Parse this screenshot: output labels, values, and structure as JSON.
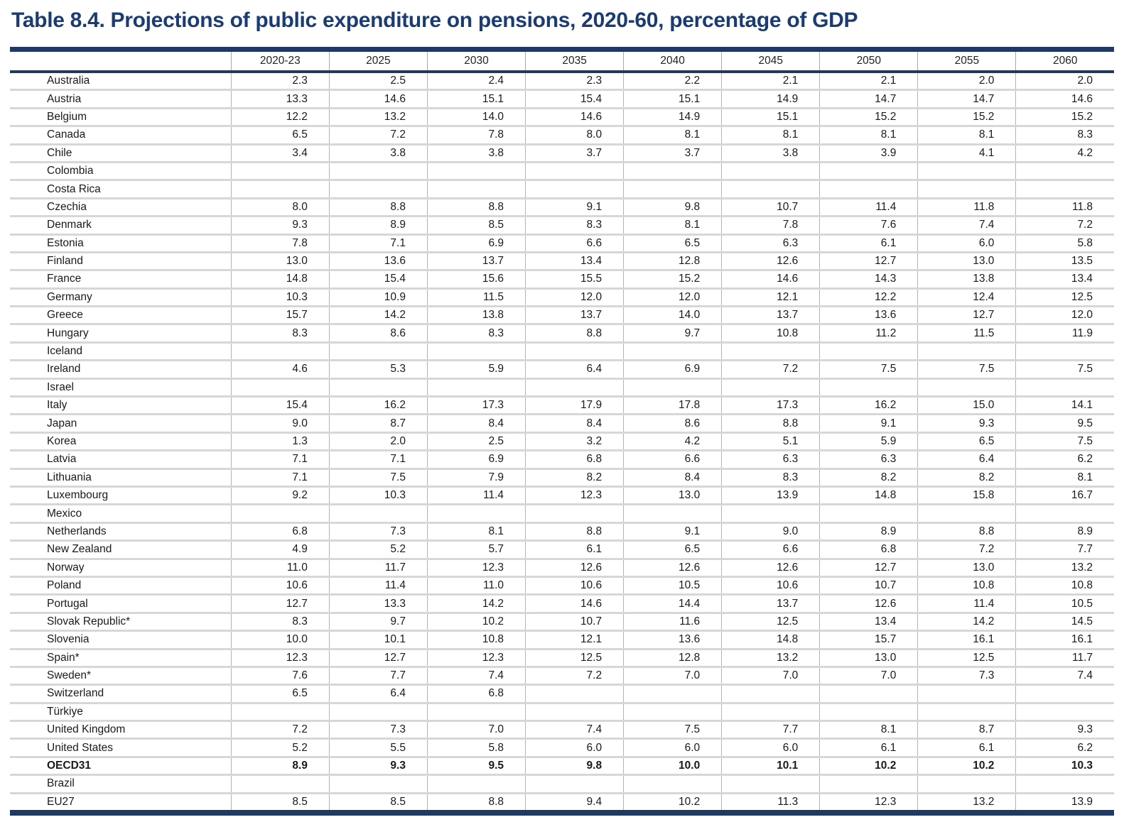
{
  "title": "Table 8.4. Projections of public expenditure on pensions, 2020-60, percentage of GDP",
  "accent_color": "#1f3864",
  "table": {
    "columns": [
      "2020-23",
      "2025",
      "2030",
      "2035",
      "2040",
      "2045",
      "2050",
      "2055",
      "2060"
    ],
    "rows": [
      {
        "country": "Australia",
        "bold": false,
        "values": [
          "2.3",
          "2.5",
          "2.4",
          "2.3",
          "2.2",
          "2.1",
          "2.1",
          "2.0",
          "2.0"
        ]
      },
      {
        "country": "Austria",
        "bold": false,
        "values": [
          "13.3",
          "14.6",
          "15.1",
          "15.4",
          "15.1",
          "14.9",
          "14.7",
          "14.7",
          "14.6"
        ]
      },
      {
        "country": "Belgium",
        "bold": false,
        "values": [
          "12.2",
          "13.2",
          "14.0",
          "14.6",
          "14.9",
          "15.1",
          "15.2",
          "15.2",
          "15.2"
        ]
      },
      {
        "country": "Canada",
        "bold": false,
        "values": [
          "6.5",
          "7.2",
          "7.8",
          "8.0",
          "8.1",
          "8.1",
          "8.1",
          "8.1",
          "8.3"
        ]
      },
      {
        "country": "Chile",
        "bold": false,
        "values": [
          "3.4",
          "3.8",
          "3.8",
          "3.7",
          "3.7",
          "3.8",
          "3.9",
          "4.1",
          "4.2"
        ]
      },
      {
        "country": "Colombia",
        "bold": false,
        "values": [
          "",
          "",
          "",
          "",
          "",
          "",
          "",
          "",
          ""
        ]
      },
      {
        "country": "Costa Rica",
        "bold": false,
        "values": [
          "",
          "",
          "",
          "",
          "",
          "",
          "",
          "",
          ""
        ]
      },
      {
        "country": "Czechia",
        "bold": false,
        "values": [
          "8.0",
          "8.8",
          "8.8",
          "9.1",
          "9.8",
          "10.7",
          "11.4",
          "11.8",
          "11.8"
        ]
      },
      {
        "country": "Denmark",
        "bold": false,
        "values": [
          "9.3",
          "8.9",
          "8.5",
          "8.3",
          "8.1",
          "7.8",
          "7.6",
          "7.4",
          "7.2"
        ]
      },
      {
        "country": "Estonia",
        "bold": false,
        "values": [
          "7.8",
          "7.1",
          "6.9",
          "6.6",
          "6.5",
          "6.3",
          "6.1",
          "6.0",
          "5.8"
        ]
      },
      {
        "country": "Finland",
        "bold": false,
        "values": [
          "13.0",
          "13.6",
          "13.7",
          "13.4",
          "12.8",
          "12.6",
          "12.7",
          "13.0",
          "13.5"
        ]
      },
      {
        "country": "France",
        "bold": false,
        "values": [
          "14.8",
          "15.4",
          "15.6",
          "15.5",
          "15.2",
          "14.6",
          "14.3",
          "13.8",
          "13.4"
        ]
      },
      {
        "country": "Germany",
        "bold": false,
        "values": [
          "10.3",
          "10.9",
          "11.5",
          "12.0",
          "12.0",
          "12.1",
          "12.2",
          "12.4",
          "12.5"
        ]
      },
      {
        "country": "Greece",
        "bold": false,
        "values": [
          "15.7",
          "14.2",
          "13.8",
          "13.7",
          "14.0",
          "13.7",
          "13.6",
          "12.7",
          "12.0"
        ]
      },
      {
        "country": "Hungary",
        "bold": false,
        "values": [
          "8.3",
          "8.6",
          "8.3",
          "8.8",
          "9.7",
          "10.8",
          "11.2",
          "11.5",
          "11.9"
        ]
      },
      {
        "country": "Iceland",
        "bold": false,
        "values": [
          "",
          "",
          "",
          "",
          "",
          "",
          "",
          "",
          ""
        ]
      },
      {
        "country": "Ireland",
        "bold": false,
        "values": [
          "4.6",
          "5.3",
          "5.9",
          "6.4",
          "6.9",
          "7.2",
          "7.5",
          "7.5",
          "7.5"
        ]
      },
      {
        "country": "Israel",
        "bold": false,
        "values": [
          "",
          "",
          "",
          "",
          "",
          "",
          "",
          "",
          ""
        ]
      },
      {
        "country": "Italy",
        "bold": false,
        "values": [
          "15.4",
          "16.2",
          "17.3",
          "17.9",
          "17.8",
          "17.3",
          "16.2",
          "15.0",
          "14.1"
        ]
      },
      {
        "country": "Japan",
        "bold": false,
        "values": [
          "9.0",
          "8.7",
          "8.4",
          "8.4",
          "8.6",
          "8.8",
          "9.1",
          "9.3",
          "9.5"
        ]
      },
      {
        "country": "Korea",
        "bold": false,
        "values": [
          "1.3",
          "2.0",
          "2.5",
          "3.2",
          "4.2",
          "5.1",
          "5.9",
          "6.5",
          "7.5"
        ]
      },
      {
        "country": "Latvia",
        "bold": false,
        "values": [
          "7.1",
          "7.1",
          "6.9",
          "6.8",
          "6.6",
          "6.3",
          "6.3",
          "6.4",
          "6.2"
        ]
      },
      {
        "country": "Lithuania",
        "bold": false,
        "values": [
          "7.1",
          "7.5",
          "7.9",
          "8.2",
          "8.4",
          "8.3",
          "8.2",
          "8.2",
          "8.1"
        ]
      },
      {
        "country": "Luxembourg",
        "bold": false,
        "values": [
          "9.2",
          "10.3",
          "11.4",
          "12.3",
          "13.0",
          "13.9",
          "14.8",
          "15.8",
          "16.7"
        ]
      },
      {
        "country": "Mexico",
        "bold": false,
        "values": [
          "",
          "",
          "",
          "",
          "",
          "",
          "",
          "",
          ""
        ]
      },
      {
        "country": "Netherlands",
        "bold": false,
        "values": [
          "6.8",
          "7.3",
          "8.1",
          "8.8",
          "9.1",
          "9.0",
          "8.9",
          "8.8",
          "8.9"
        ]
      },
      {
        "country": "New Zealand",
        "bold": false,
        "values": [
          "4.9",
          "5.2",
          "5.7",
          "6.1",
          "6.5",
          "6.6",
          "6.8",
          "7.2",
          "7.7"
        ]
      },
      {
        "country": "Norway",
        "bold": false,
        "values": [
          "11.0",
          "11.7",
          "12.3",
          "12.6",
          "12.6",
          "12.6",
          "12.7",
          "13.0",
          "13.2"
        ]
      },
      {
        "country": "Poland",
        "bold": false,
        "values": [
          "10.6",
          "11.4",
          "11.0",
          "10.6",
          "10.5",
          "10.6",
          "10.7",
          "10.8",
          "10.8"
        ]
      },
      {
        "country": "Portugal",
        "bold": false,
        "values": [
          "12.7",
          "13.3",
          "14.2",
          "14.6",
          "14.4",
          "13.7",
          "12.6",
          "11.4",
          "10.5"
        ]
      },
      {
        "country": "Slovak Republic*",
        "bold": false,
        "values": [
          "8.3",
          "9.7",
          "10.2",
          "10.7",
          "11.6",
          "12.5",
          "13.4",
          "14.2",
          "14.5"
        ]
      },
      {
        "country": "Slovenia",
        "bold": false,
        "values": [
          "10.0",
          "10.1",
          "10.8",
          "12.1",
          "13.6",
          "14.8",
          "15.7",
          "16.1",
          "16.1"
        ]
      },
      {
        "country": "Spain*",
        "bold": false,
        "values": [
          "12.3",
          "12.7",
          "12.3",
          "12.5",
          "12.8",
          "13.2",
          "13.0",
          "12.5",
          "11.7"
        ]
      },
      {
        "country": "Sweden*",
        "bold": false,
        "values": [
          "7.6",
          "7.7",
          "7.4",
          "7.2",
          "7.0",
          "7.0",
          "7.0",
          "7.3",
          "7.4"
        ]
      },
      {
        "country": "Switzerland",
        "bold": false,
        "values": [
          "6.5",
          "6.4",
          "6.8",
          "",
          "",
          "",
          "",
          "",
          ""
        ]
      },
      {
        "country": "Türkiye",
        "bold": false,
        "values": [
          "",
          "",
          "",
          "",
          "",
          "",
          "",
          "",
          ""
        ]
      },
      {
        "country": "United Kingdom",
        "bold": false,
        "values": [
          "7.2",
          "7.3",
          "7.0",
          "7.4",
          "7.5",
          "7.7",
          "8.1",
          "8.7",
          "9.3"
        ]
      },
      {
        "country": "United States",
        "bold": false,
        "values": [
          "5.2",
          "5.5",
          "5.8",
          "6.0",
          "6.0",
          "6.0",
          "6.1",
          "6.1",
          "6.2"
        ]
      },
      {
        "country": "OECD31",
        "bold": true,
        "values": [
          "8.9",
          "9.3",
          "9.5",
          "9.8",
          "10.0",
          "10.1",
          "10.2",
          "10.2",
          "10.3"
        ]
      },
      {
        "country": "Brazil",
        "bold": false,
        "values": [
          "",
          "",
          "",
          "",
          "",
          "",
          "",
          "",
          ""
        ]
      },
      {
        "country": "EU27",
        "bold": false,
        "values": [
          "8.5",
          "8.5",
          "8.8",
          "9.4",
          "10.2",
          "11.3",
          "12.3",
          "13.2",
          "13.9"
        ]
      }
    ]
  }
}
